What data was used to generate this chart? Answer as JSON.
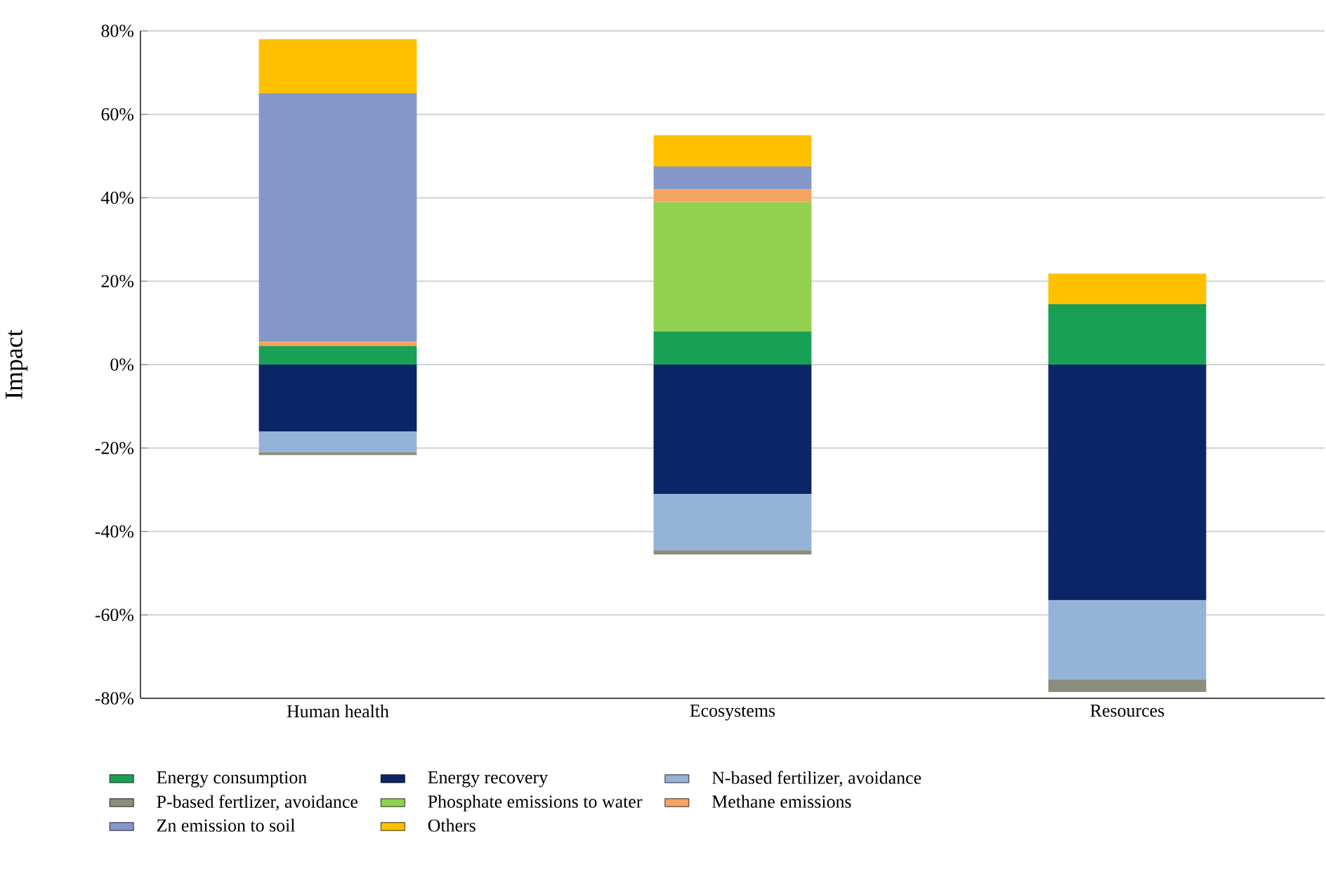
{
  "chart_data": {
    "type": "bar",
    "stacked": true,
    "ylabel": "Impact",
    "categories": [
      "Human health",
      "Ecosystems",
      "Resources"
    ],
    "series": [
      {
        "name": "Energy consumption",
        "color": "#1aa055",
        "values": [
          4.5,
          8,
          14.5
        ]
      },
      {
        "name": "Energy recovery",
        "color": "#0b2566",
        "values": [
          -16,
          -31,
          -56.5
        ]
      },
      {
        "name": "N-based fertilizer, avoidance",
        "color": "#95b3d7",
        "values": [
          -5,
          -13.5,
          -19
        ]
      },
      {
        "name": "P-based fertlizer, avoidance",
        "color": "#8c8c7c",
        "values": [
          -0.7,
          -1,
          -3
        ]
      },
      {
        "name": "Phosphate emissions to water",
        "color": "#92d050",
        "values": [
          0,
          31,
          0
        ]
      },
      {
        "name": "Methane emissions",
        "color": "#f4a460",
        "values": [
          1,
          3,
          0
        ]
      },
      {
        "name": "Zn emission to soil",
        "color": "#8497c8",
        "values": [
          59.5,
          5.5,
          0
        ]
      },
      {
        "name": "Others",
        "color": "#ffc000",
        "values": [
          13,
          7.5,
          7.3
        ]
      }
    ],
    "ylim": [
      -80,
      80
    ],
    "yticks": [
      {
        "value": -80,
        "label": "-80%"
      },
      {
        "value": -60,
        "label": "-60%"
      },
      {
        "value": -40,
        "label": "-40%"
      },
      {
        "value": -20,
        "label": "-20%"
      },
      {
        "value": 0,
        "label": "0%"
      },
      {
        "value": 20,
        "label": "20%"
      },
      {
        "value": 40,
        "label": "40%"
      },
      {
        "value": 60,
        "label": "60%"
      },
      {
        "value": 80,
        "label": "80%"
      }
    ],
    "grid": "y",
    "legend": "bottom"
  }
}
